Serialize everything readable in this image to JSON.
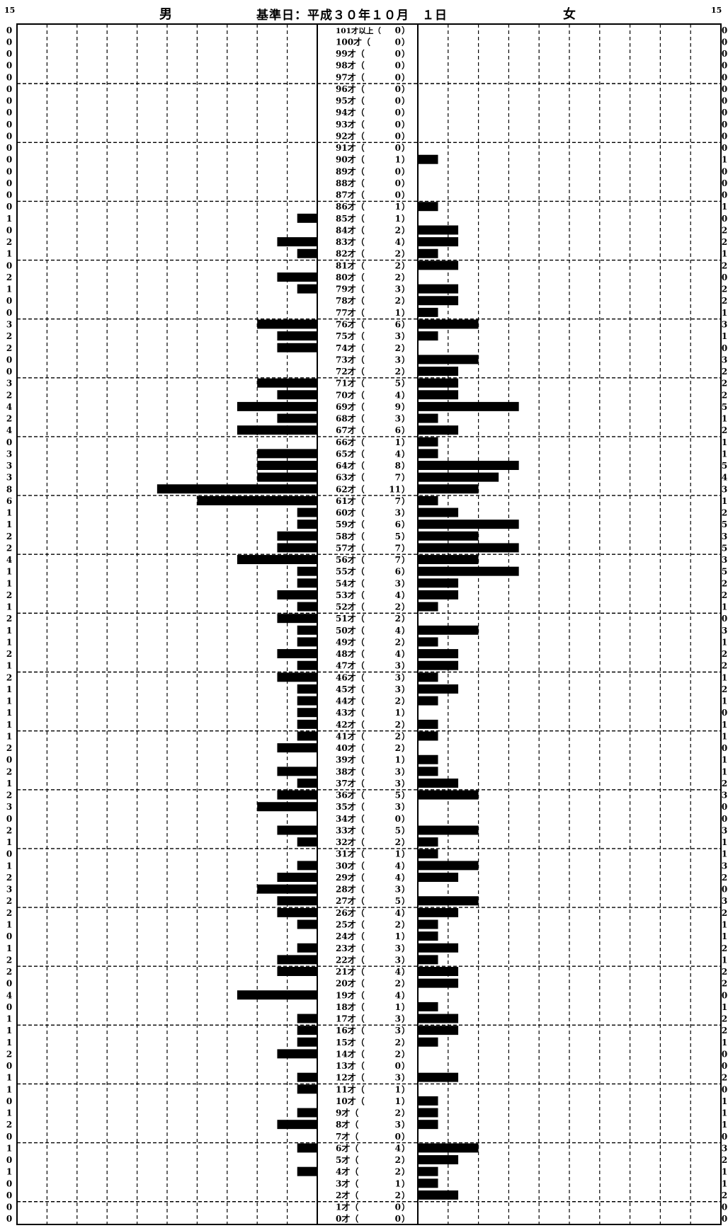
{
  "header": {
    "scale_left": "15",
    "scale_right": "15",
    "male_label": "男",
    "female_label": "女",
    "date_label": "基準日：平成３０年１０月　１日"
  },
  "chart_data": {
    "type": "bar",
    "subtype": "population-pyramid",
    "x_max": 15,
    "grid": "dashed",
    "categories": [
      "101才以上",
      "100才",
      "99才",
      "98才",
      "97才",
      "96才",
      "95才",
      "94才",
      "93才",
      "92才",
      "91才",
      "90才",
      "89才",
      "88才",
      "87才",
      "86才",
      "85才",
      "84才",
      "83才",
      "82才",
      "81才",
      "80才",
      "79才",
      "78才",
      "77才",
      "76才",
      "75才",
      "74才",
      "73才",
      "72才",
      "71才",
      "70才",
      "69才",
      "68才",
      "67才",
      "66才",
      "65才",
      "64才",
      "63才",
      "62才",
      "61才",
      "60才",
      "59才",
      "58才",
      "57才",
      "56才",
      "55才",
      "54才",
      "53才",
      "52才",
      "51才",
      "50才",
      "49才",
      "48才",
      "47才",
      "46才",
      "45才",
      "44才",
      "43才",
      "42才",
      "41才",
      "40才",
      "39才",
      "38才",
      "37才",
      "36才",
      "35才",
      "34才",
      "33才",
      "32才",
      "31才",
      "30才",
      "29才",
      "28才",
      "27才",
      "26才",
      "25才",
      "24才",
      "23才",
      "22才",
      "21才",
      "20才",
      "19才",
      "18才",
      "17才",
      "16才",
      "15才",
      "14才",
      "13才",
      "12才",
      "11才",
      "10才",
      "9才",
      "8才",
      "7才",
      "6才",
      "5才",
      "4才",
      "3才",
      "2才",
      "1才",
      "0才"
    ],
    "totals": [
      0,
      0,
      0,
      0,
      0,
      0,
      0,
      0,
      0,
      0,
      0,
      1,
      0,
      0,
      0,
      1,
      1,
      2,
      4,
      2,
      2,
      2,
      3,
      2,
      1,
      6,
      3,
      2,
      3,
      2,
      5,
      4,
      9,
      3,
      6,
      1,
      4,
      8,
      7,
      11,
      7,
      3,
      6,
      5,
      7,
      7,
      6,
      3,
      4,
      2,
      2,
      4,
      2,
      4,
      3,
      3,
      3,
      2,
      1,
      2,
      2,
      2,
      1,
      3,
      3,
      5,
      3,
      0,
      5,
      2,
      1,
      4,
      4,
      3,
      5,
      4,
      2,
      1,
      3,
      3,
      4,
      2,
      4,
      1,
      3,
      3,
      2,
      2,
      0,
      3,
      1,
      1,
      2,
      3,
      0,
      4,
      2,
      2,
      1,
      2,
      0,
      0
    ],
    "series": [
      {
        "name": "男",
        "color": "#000000",
        "values": [
          0,
          0,
          0,
          0,
          0,
          0,
          0,
          0,
          0,
          0,
          0,
          0,
          0,
          0,
          0,
          0,
          1,
          0,
          2,
          1,
          0,
          2,
          1,
          0,
          0,
          3,
          2,
          2,
          0,
          0,
          3,
          2,
          4,
          2,
          4,
          0,
          3,
          3,
          3,
          8,
          6,
          1,
          1,
          2,
          2,
          4,
          1,
          1,
          2,
          1,
          2,
          1,
          1,
          2,
          1,
          2,
          1,
          1,
          1,
          1,
          1,
          2,
          0,
          2,
          1,
          2,
          3,
          0,
          2,
          1,
          0,
          1,
          2,
          3,
          2,
          2,
          1,
          0,
          1,
          2,
          2,
          0,
          4,
          0,
          1,
          1,
          1,
          2,
          0,
          1,
          1,
          0,
          1,
          2,
          0,
          1,
          0,
          1,
          0,
          0,
          0,
          0
        ]
      },
      {
        "name": "女",
        "color": "#000000",
        "values": [
          0,
          0,
          0,
          0,
          0,
          0,
          0,
          0,
          0,
          0,
          0,
          1,
          0,
          0,
          0,
          1,
          0,
          2,
          2,
          1,
          2,
          0,
          2,
          2,
          1,
          3,
          1,
          0,
          3,
          2,
          2,
          2,
          5,
          1,
          2,
          1,
          1,
          5,
          4,
          3,
          1,
          2,
          5,
          3,
          5,
          3,
          5,
          2,
          2,
          1,
          0,
          3,
          1,
          2,
          2,
          1,
          2,
          1,
          0,
          1,
          1,
          0,
          1,
          1,
          2,
          3,
          0,
          0,
          3,
          1,
          1,
          3,
          2,
          0,
          3,
          2,
          1,
          1,
          2,
          1,
          2,
          2,
          0,
          1,
          2,
          2,
          1,
          0,
          0,
          2,
          0,
          1,
          1,
          1,
          0,
          3,
          2,
          1,
          1,
          2,
          0,
          0
        ]
      }
    ]
  }
}
